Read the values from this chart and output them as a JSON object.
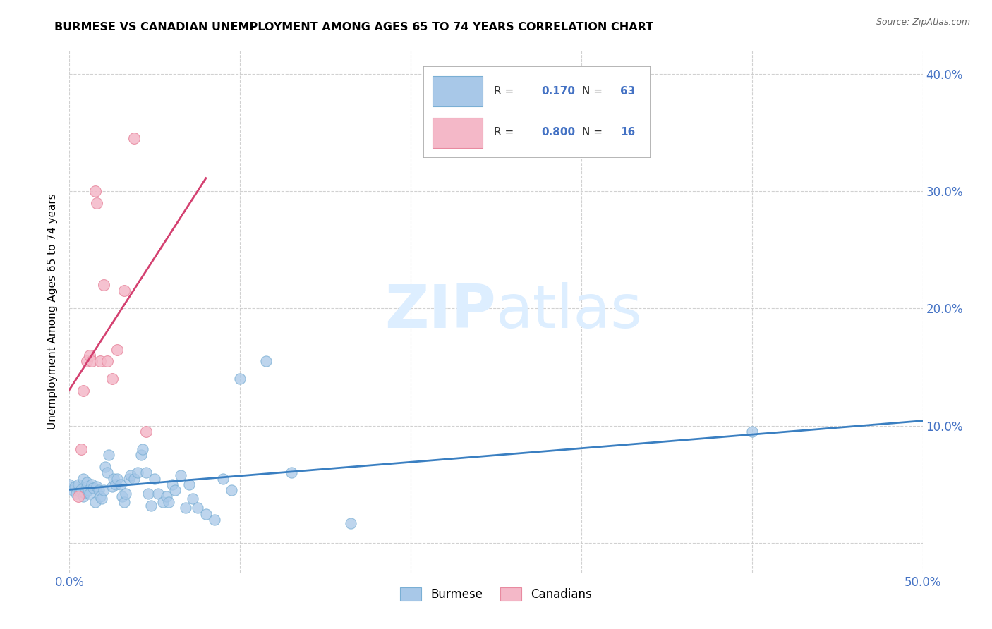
{
  "title": "BURMESE VS CANADIAN UNEMPLOYMENT AMONG AGES 65 TO 74 YEARS CORRELATION CHART",
  "source": "Source: ZipAtlas.com",
  "ylabel": "Unemployment Among Ages 65 to 74 years",
  "xlim": [
    0.0,
    0.5
  ],
  "ylim": [
    -0.025,
    0.42
  ],
  "legend_R_blue": "0.170",
  "legend_N_blue": "63",
  "legend_R_pink": "0.800",
  "legend_N_pink": "16",
  "blue_scatter_color": "#a8c8e8",
  "blue_scatter_edge": "#7aafd4",
  "pink_scatter_color": "#f4b8c8",
  "pink_scatter_edge": "#e88aa0",
  "blue_line_color": "#3a7fc1",
  "pink_line_color": "#d44070",
  "tick_color": "#4472c4",
  "watermark_zip": "ZIP",
  "watermark_atlas": "atlas",
  "watermark_color": "#ddeeff",
  "burmese_x": [
    0.0,
    0.002,
    0.003,
    0.004,
    0.005,
    0.006,
    0.007,
    0.008,
    0.008,
    0.009,
    0.01,
    0.01,
    0.011,
    0.012,
    0.013,
    0.014,
    0.015,
    0.016,
    0.017,
    0.018,
    0.019,
    0.02,
    0.021,
    0.022,
    0.023,
    0.025,
    0.026,
    0.027,
    0.028,
    0.03,
    0.031,
    0.032,
    0.033,
    0.035,
    0.036,
    0.038,
    0.04,
    0.042,
    0.043,
    0.045,
    0.046,
    0.048,
    0.05,
    0.052,
    0.055,
    0.057,
    0.058,
    0.06,
    0.062,
    0.065,
    0.068,
    0.07,
    0.072,
    0.075,
    0.08,
    0.085,
    0.09,
    0.095,
    0.1,
    0.115,
    0.13,
    0.165,
    0.4
  ],
  "burmese_y": [
    0.05,
    0.045,
    0.048,
    0.042,
    0.05,
    0.044,
    0.046,
    0.04,
    0.055,
    0.043,
    0.048,
    0.052,
    0.045,
    0.042,
    0.05,
    0.047,
    0.035,
    0.048,
    0.045,
    0.04,
    0.038,
    0.045,
    0.065,
    0.06,
    0.075,
    0.048,
    0.055,
    0.05,
    0.055,
    0.05,
    0.04,
    0.035,
    0.042,
    0.055,
    0.058,
    0.055,
    0.06,
    0.075,
    0.08,
    0.06,
    0.042,
    0.032,
    0.055,
    0.042,
    0.035,
    0.04,
    0.035,
    0.05,
    0.045,
    0.058,
    0.03,
    0.05,
    0.038,
    0.03,
    0.025,
    0.02,
    0.055,
    0.045,
    0.14,
    0.155,
    0.06,
    0.017,
    0.095
  ],
  "canadian_x": [
    0.005,
    0.007,
    0.008,
    0.01,
    0.012,
    0.013,
    0.015,
    0.016,
    0.018,
    0.02,
    0.022,
    0.025,
    0.028,
    0.032,
    0.038,
    0.045
  ],
  "canadian_y": [
    0.04,
    0.08,
    0.13,
    0.155,
    0.16,
    0.155,
    0.3,
    0.29,
    0.155,
    0.22,
    0.155,
    0.14,
    0.165,
    0.215,
    0.345,
    0.095
  ]
}
